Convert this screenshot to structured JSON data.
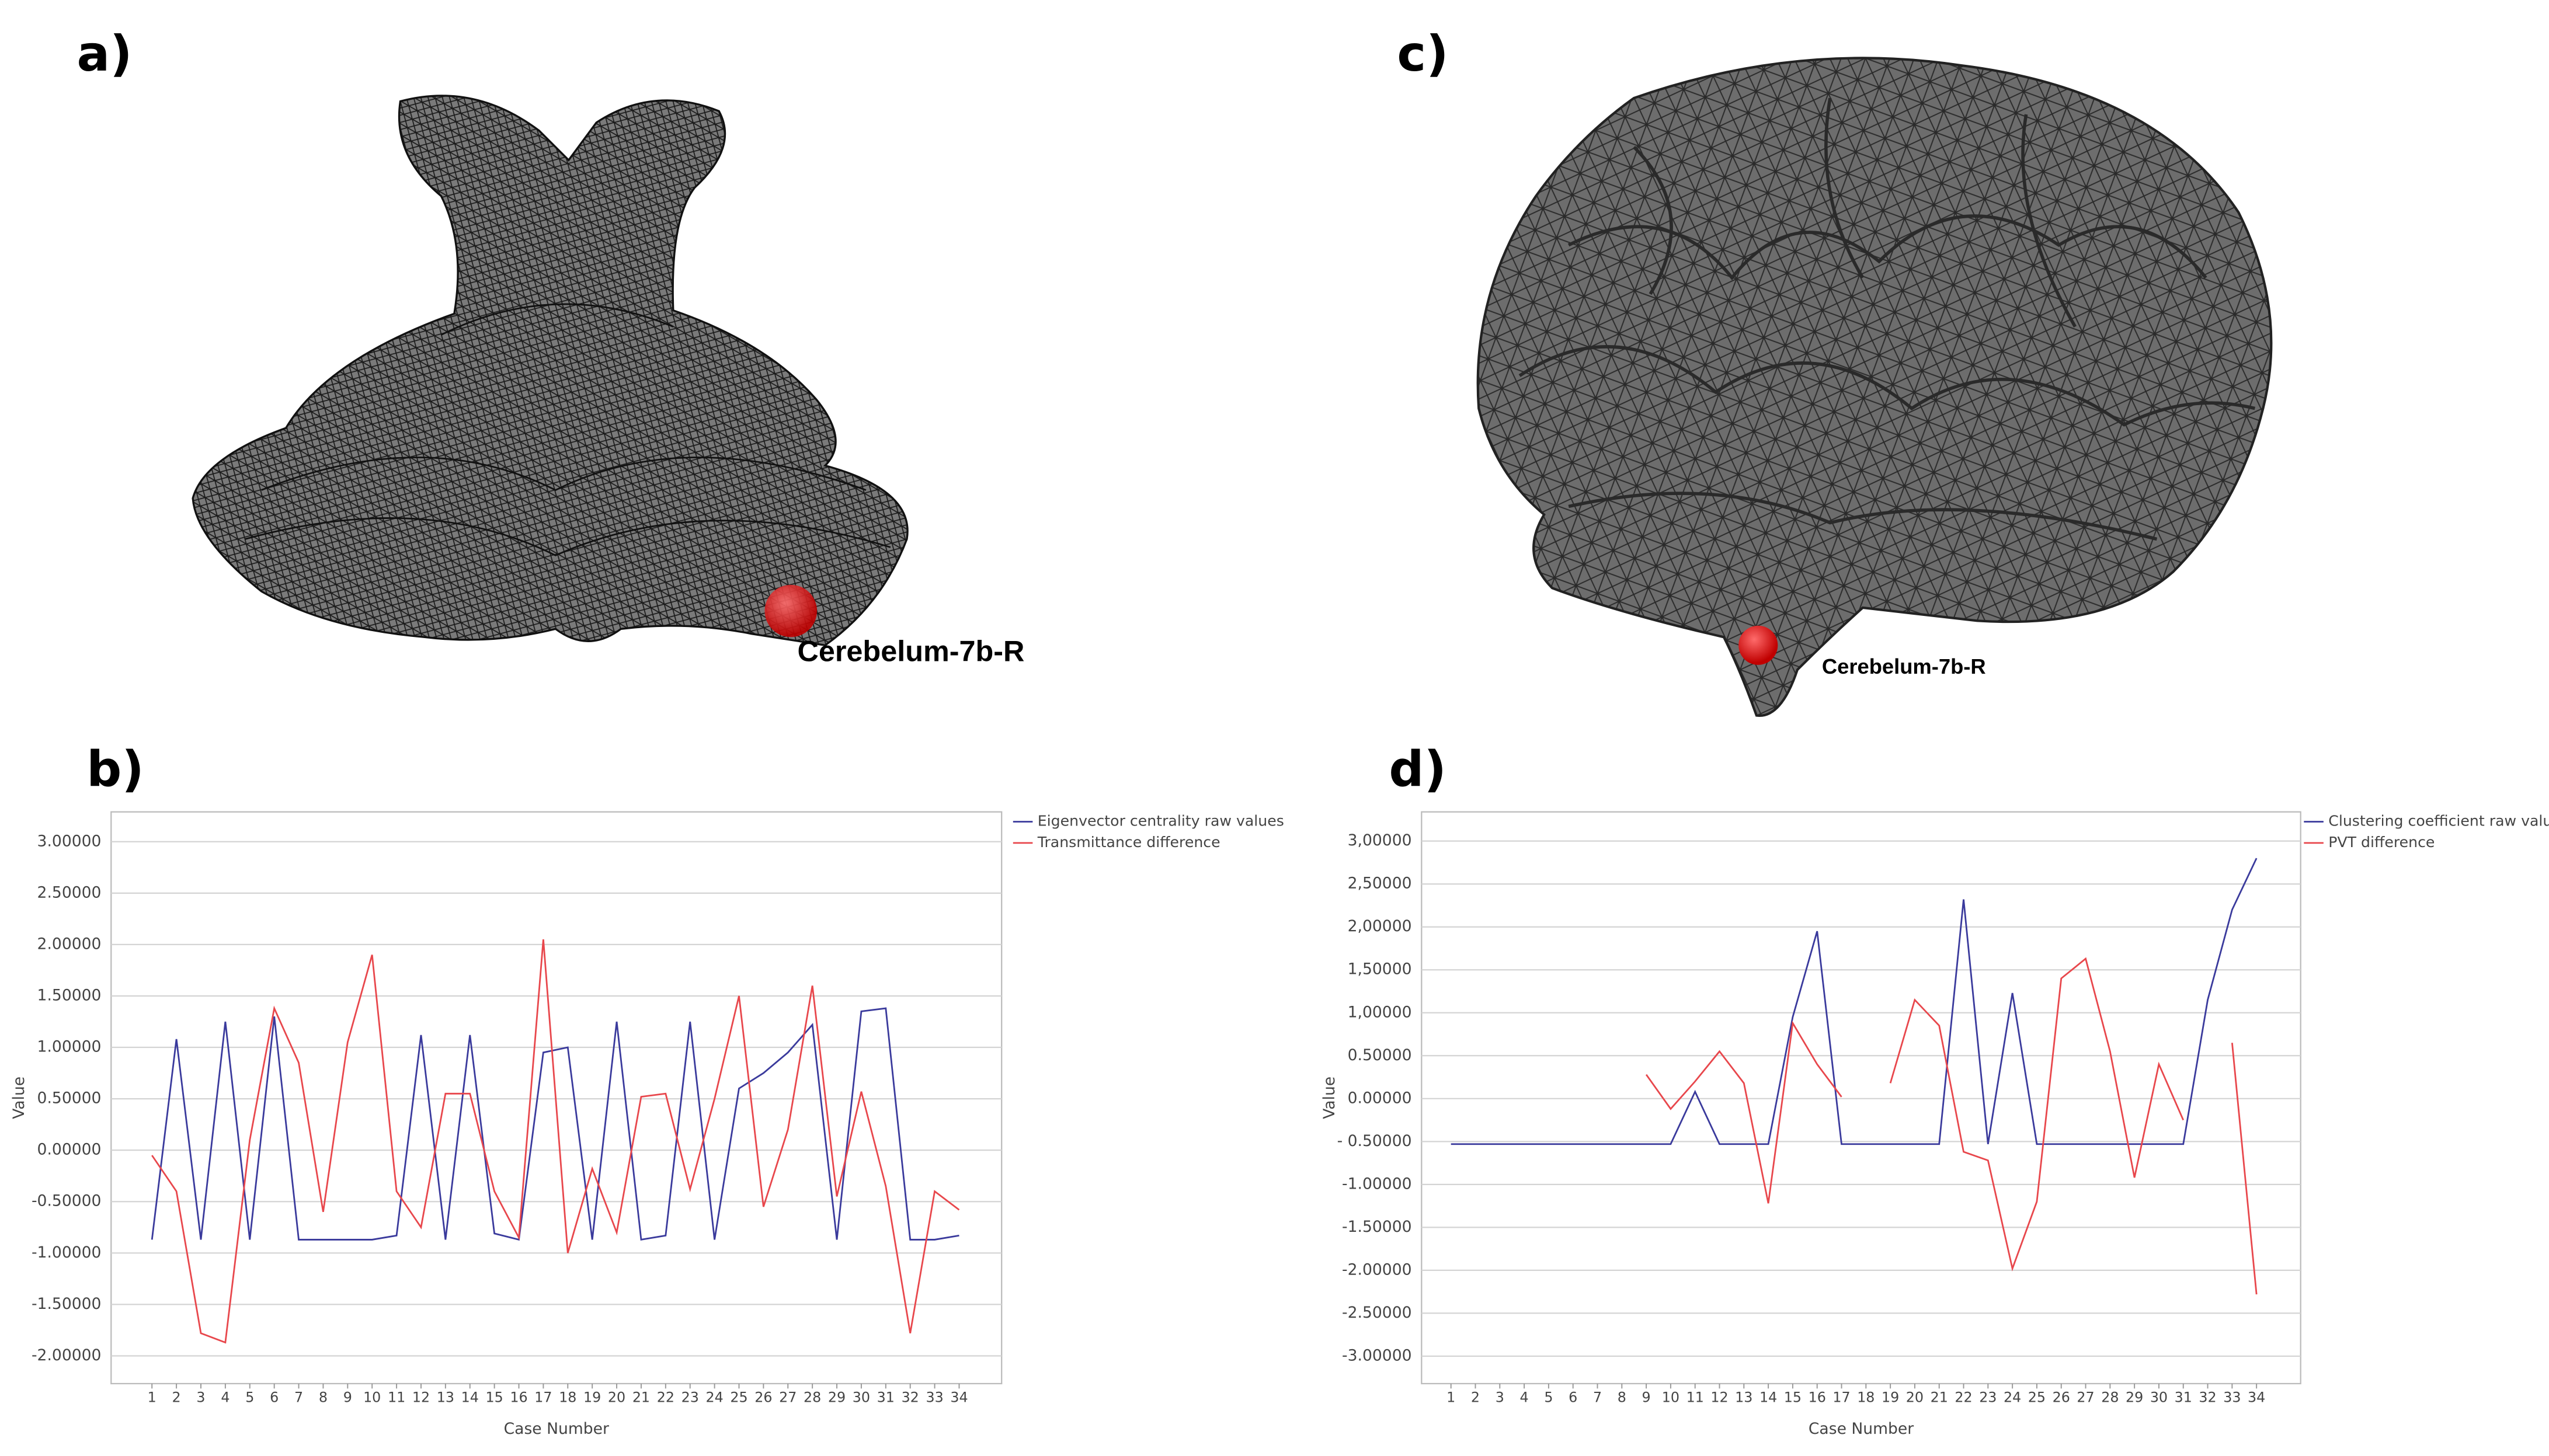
{
  "panels": [
    {
      "label": "a)",
      "annotation": "Cerebelum-7b-R"
    },
    {
      "label": "c)",
      "annotation": "Cerebelum-7b-R"
    },
    {
      "label": "b)"
    },
    {
      "label": "d)"
    }
  ],
  "chart_data": [
    {
      "type": "line",
      "xlabel": "Case Number",
      "ylabel": "Value",
      "categories": [
        "1",
        "2",
        "3",
        "4",
        "5",
        "6",
        "7",
        "8",
        "9",
        "10",
        "11",
        "12",
        "13",
        "14",
        "15",
        "16",
        "17",
        "18",
        "19",
        "20",
        "21",
        "22",
        "23",
        "24",
        "25",
        "26",
        "27",
        "28",
        "29",
        "30",
        "31",
        "32",
        "33",
        "34"
      ],
      "ylim": [
        -2.27,
        3.29
      ],
      "yticks": [
        {
          "value": 3,
          "label": "3.00000"
        },
        {
          "value": 2.5,
          "label": "2.50000"
        },
        {
          "value": 2,
          "label": "2.00000"
        },
        {
          "value": 1.5,
          "label": "1.50000"
        },
        {
          "value": 1,
          "label": "1.00000"
        },
        {
          "value": 0.5,
          "label": "0.50000"
        },
        {
          "value": 0,
          "label": "0.00000"
        },
        {
          "value": -0.5,
          "label": "-0.50000"
        },
        {
          "value": -1,
          "label": "-1.00000"
        },
        {
          "value": -1.5,
          "label": "-1.50000"
        },
        {
          "value": -2,
          "label": "-2.00000"
        }
      ],
      "grid": true,
      "legend": "outside upper right",
      "series": [
        {
          "name": "Eigenvector centrality raw values",
          "color": "#3a3a9c",
          "values": [
            -0.87,
            1.08,
            -0.87,
            1.25,
            -0.87,
            1.3,
            -0.87,
            -0.87,
            -0.87,
            -0.87,
            -0.83,
            1.12,
            -0.87,
            1.12,
            -0.81,
            -0.87,
            0.95,
            1.0,
            -0.87,
            1.25,
            -0.87,
            -0.83,
            1.25,
            -0.87,
            0.6,
            0.75,
            0.95,
            1.22,
            -0.87,
            1.35,
            1.38,
            -0.87,
            -0.87,
            -0.83
          ]
        },
        {
          "name": "Transmittance difference",
          "color": "#e8474c",
          "values": [
            -0.05,
            -0.4,
            -1.78,
            -1.87,
            0.1,
            1.38,
            0.85,
            -0.6,
            1.05,
            1.9,
            -0.4,
            -0.75,
            0.55,
            0.55,
            -0.4,
            -0.85,
            2.05,
            -1.0,
            -0.18,
            -0.8,
            0.52,
            0.55,
            -0.38,
            0.5,
            1.5,
            -0.55,
            0.2,
            1.6,
            -0.45,
            0.57,
            -0.35,
            -1.78,
            -0.4,
            -0.58
          ]
        }
      ]
    },
    {
      "type": "line",
      "xlabel": "Case Number",
      "ylabel": "Value",
      "categories": [
        "1",
        "2",
        "3",
        "4",
        "5",
        "6",
        "7",
        "8",
        "9",
        "10",
        "11",
        "12",
        "13",
        "14",
        "15",
        "16",
        "17",
        "18",
        "19",
        "20",
        "21",
        "22",
        "23",
        "24",
        "25",
        "26",
        "27",
        "28",
        "29",
        "30",
        "31",
        "32",
        "33",
        "34"
      ],
      "ylim": [
        -3.32,
        3.34
      ],
      "yticks": [
        {
          "value": 3,
          "label": "3,00000"
        },
        {
          "value": 2.5,
          "label": "2,50000"
        },
        {
          "value": 2,
          "label": "2,00000"
        },
        {
          "value": 1.5,
          "label": "1,50000"
        },
        {
          "value": 1,
          "label": "1,00000"
        },
        {
          "value": 0.5,
          "label": "0.50000"
        },
        {
          "value": 0,
          "label": "0.00000"
        },
        {
          "value": -0.5,
          "label": "- 0.50000"
        },
        {
          "value": -1,
          "label": "-1.00000"
        },
        {
          "value": -1.5,
          "label": "-1.50000"
        },
        {
          "value": -2,
          "label": "-2.00000"
        },
        {
          "value": -2.5,
          "label": "-2.50000"
        },
        {
          "value": -3,
          "label": "-3.00000"
        }
      ],
      "grid": true,
      "legend": "outside upper right",
      "series": [
        {
          "name": "Clustering coefficient raw values",
          "color": "#3a3a9c",
          "values": [
            -0.53,
            -0.53,
            -0.53,
            -0.53,
            -0.53,
            -0.53,
            -0.53,
            -0.53,
            -0.53,
            -0.53,
            0.08,
            -0.53,
            -0.53,
            -0.53,
            0.95,
            1.95,
            -0.53,
            -0.53,
            -0.53,
            -0.53,
            -0.53,
            2.32,
            -0.53,
            1.23,
            -0.53,
            -0.53,
            -0.53,
            -0.53,
            -0.53,
            -0.53,
            -0.53,
            1.15,
            2.2,
            2.8
          ]
        },
        {
          "name": "PVT difference",
          "color": "#e8474c",
          "values": [
            null,
            null,
            null,
            null,
            null,
            null,
            null,
            null,
            0.28,
            -0.12,
            0.2,
            0.55,
            0.18,
            -1.22,
            0.88,
            0.4,
            0.02,
            null,
            0.18,
            1.15,
            0.85,
            -0.62,
            -0.72,
            -1.98,
            -1.2,
            1.4,
            1.63,
            0.55,
            -0.92,
            0.4,
            -0.25,
            null,
            0.65,
            -2.28
          ]
        }
      ]
    }
  ]
}
